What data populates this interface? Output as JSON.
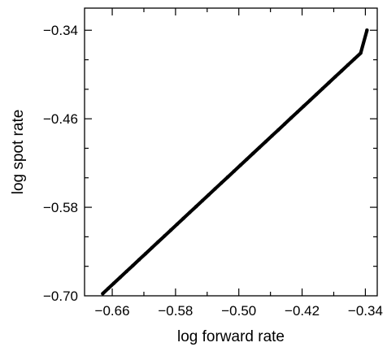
{
  "chart_data": {
    "type": "scatter",
    "title": "",
    "xlabel": "log forward rate",
    "ylabel": "log spot rate",
    "xlim": [
      -0.695,
      -0.325
    ],
    "ylim": [
      -0.7,
      -0.31
    ],
    "xticks": [
      -0.66,
      -0.58,
      -0.5,
      -0.42,
      -0.34
    ],
    "xtick_labels": [
      "−0.66",
      "−0.58",
      "−0.50",
      "−0.42",
      "−0.34"
    ],
    "yticks": [
      -0.7,
      -0.58,
      -0.46,
      -0.34
    ],
    "ytick_labels": [
      "−0.70",
      "−0.58",
      "−0.46",
      "−0.34"
    ],
    "grid": false,
    "legend": "none",
    "series": [
      {
        "color": "#000000",
        "x": [
          -0.672,
          -0.665,
          -0.658,
          -0.65,
          -0.642,
          -0.634,
          -0.626,
          -0.618,
          -0.61,
          -0.602,
          -0.594,
          -0.586,
          -0.578,
          -0.57,
          -0.562,
          -0.554,
          -0.546,
          -0.538,
          -0.53,
          -0.522,
          -0.514,
          -0.506,
          -0.498,
          -0.49,
          -0.482,
          -0.474,
          -0.466,
          -0.458,
          -0.45,
          -0.442,
          -0.434,
          -0.426,
          -0.418,
          -0.41,
          -0.402,
          -0.394,
          -0.386,
          -0.378,
          -0.37,
          -0.362,
          -0.354,
          -0.346,
          -0.338
        ],
        "y": [
          -0.697,
          -0.69,
          -0.683,
          -0.675,
          -0.667,
          -0.659,
          -0.651,
          -0.643,
          -0.635,
          -0.627,
          -0.619,
          -0.611,
          -0.603,
          -0.595,
          -0.587,
          -0.579,
          -0.571,
          -0.563,
          -0.555,
          -0.547,
          -0.539,
          -0.531,
          -0.523,
          -0.515,
          -0.507,
          -0.499,
          -0.491,
          -0.483,
          -0.475,
          -0.467,
          -0.459,
          -0.451,
          -0.443,
          -0.435,
          -0.427,
          -0.419,
          -0.411,
          -0.403,
          -0.395,
          -0.387,
          -0.379,
          -0.371,
          -0.34
        ]
      }
    ]
  }
}
